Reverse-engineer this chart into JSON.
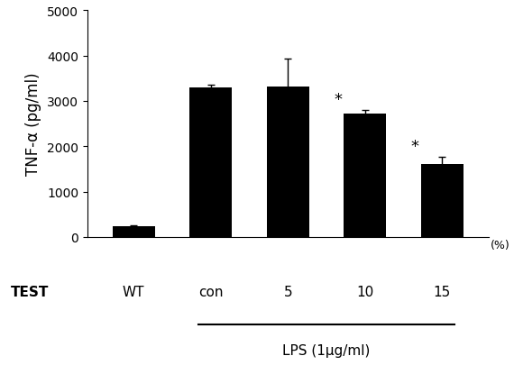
{
  "categories": [
    "WT",
    "con",
    "5",
    "10",
    "15"
  ],
  "values": [
    230,
    3300,
    3320,
    2720,
    1600
  ],
  "errors": [
    30,
    60,
    620,
    80,
    160
  ],
  "bar_color": "#000000",
  "ylim": [
    0,
    5000
  ],
  "yticks": [
    0,
    1000,
    2000,
    3000,
    4000,
    5000
  ],
  "ylabel": "TNF-α (pg/ml)",
  "ylabel_fontsize": 12,
  "tick_fontsize": 10,
  "bar_width": 0.55,
  "test_label": "TEST",
  "lps_label": "LPS (1μg/ml)",
  "pct_label": "(%)",
  "significance": [
    false,
    false,
    false,
    true,
    true
  ],
  "lps_group_indices": [
    1,
    2,
    3,
    4
  ],
  "background_color": "#ffffff",
  "figure_width": 5.7,
  "figure_height": 4.06,
  "dpi": 100
}
